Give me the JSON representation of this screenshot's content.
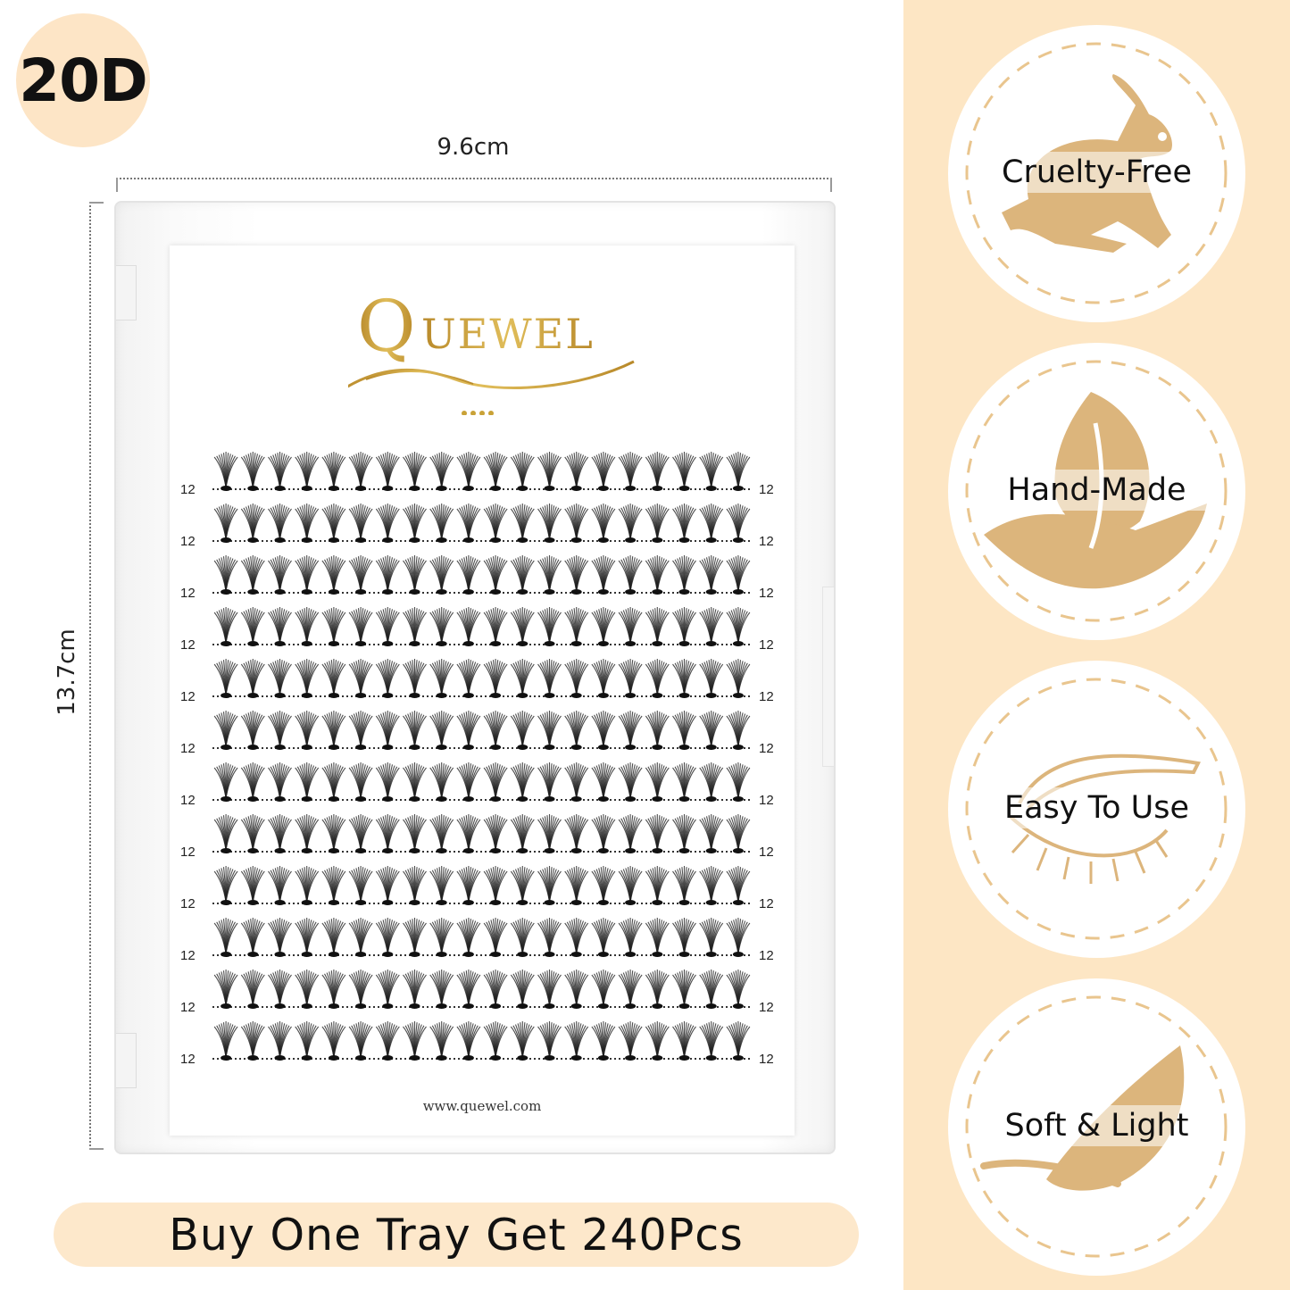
{
  "badge": "20D",
  "dimensions": {
    "width": "9.6cm",
    "height": "13.7cm"
  },
  "product": {
    "brand": "QUEWEL",
    "website": "www.quewel.com",
    "row_labels": [
      "12",
      "12",
      "12",
      "12",
      "12",
      "12",
      "12",
      "12",
      "12",
      "12",
      "12",
      "12"
    ]
  },
  "promo": "Buy One Tray Get 240Pcs",
  "colors": {
    "accent": "#fde6c4",
    "gold": "#c9a237",
    "icon": "#dcb57c"
  },
  "features": [
    {
      "label": "Cruelty-Free",
      "icon": "rabbit-icon"
    },
    {
      "label": "Hand-Made",
      "icon": "hand-leaf-icon"
    },
    {
      "label": "Easy To Use",
      "icon": "eye-tweezers-icon"
    },
    {
      "label": "Soft & Light",
      "icon": "feather-icon"
    }
  ]
}
